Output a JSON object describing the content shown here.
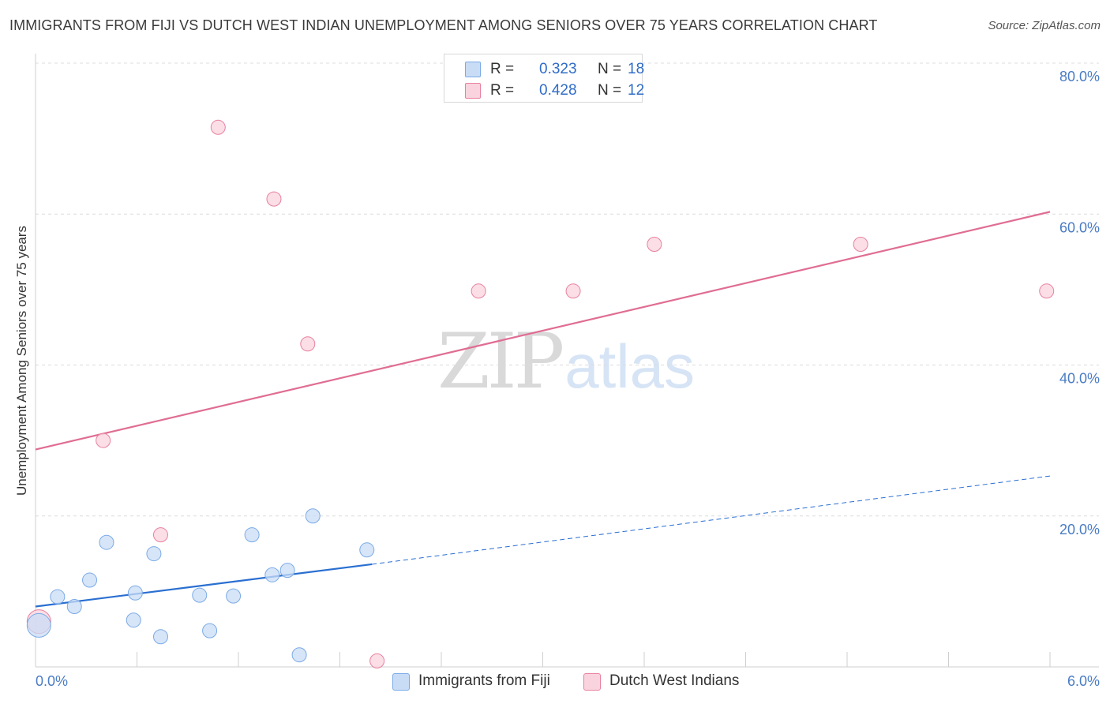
{
  "title": "IMMIGRANTS FROM FIJI VS DUTCH WEST INDIAN UNEMPLOYMENT AMONG SENIORS OVER 75 YEARS CORRELATION CHART",
  "source": "Source: ZipAtlas.com",
  "watermark": {
    "zip": "ZIP",
    "atlas": "atlas"
  },
  "legend_top": [
    {
      "r_label": "R =",
      "r_value": "0.323",
      "n_label": "N =",
      "n_value": "18",
      "color": "#a9c8f0"
    },
    {
      "r_label": "R =",
      "r_value": "0.428",
      "n_label": "N =",
      "n_value": "12",
      "color": "#f6b8c8"
    }
  ],
  "legend_bottom": [
    {
      "label": "Immigrants from Fiji",
      "color": "#a9c8f0"
    },
    {
      "label": "Dutch West Indians",
      "color": "#f6b8c8"
    }
  ],
  "chart_data": {
    "type": "scatter",
    "title": "IMMIGRANTS FROM FIJI VS DUTCH WEST INDIAN UNEMPLOYMENT AMONG SENIORS OVER 75 YEARS CORRELATION CHART",
    "xlabel": "",
    "ylabel": "Unemployment Among Seniors over 75 years",
    "xlim": [
      0,
      6
    ],
    "ylim": [
      0,
      80
    ],
    "x_tick_labels": [
      "0.0%",
      "6.0%"
    ],
    "y_ticks": [
      20,
      40,
      60,
      80
    ],
    "y_tick_labels": [
      "20.0%",
      "40.0%",
      "60.0%",
      "80.0%"
    ],
    "grid": true,
    "series": [
      {
        "name": "Immigrants from Fiji",
        "color": "#7aaae6",
        "fill": "#c9dcf5",
        "points": [
          {
            "x": 0.02,
            "y": 5.5
          },
          {
            "x": 0.13,
            "y": 9.3
          },
          {
            "x": 0.23,
            "y": 8.0
          },
          {
            "x": 0.32,
            "y": 11.5
          },
          {
            "x": 0.42,
            "y": 16.5
          },
          {
            "x": 0.58,
            "y": 6.2
          },
          {
            "x": 0.59,
            "y": 9.8
          },
          {
            "x": 0.7,
            "y": 15.0
          },
          {
            "x": 0.74,
            "y": 4.0
          },
          {
            "x": 0.97,
            "y": 9.5
          },
          {
            "x": 1.03,
            "y": 4.8
          },
          {
            "x": 1.17,
            "y": 9.4
          },
          {
            "x": 1.28,
            "y": 17.5
          },
          {
            "x": 1.4,
            "y": 12.2
          },
          {
            "x": 1.49,
            "y": 12.8
          },
          {
            "x": 1.56,
            "y": 1.6
          },
          {
            "x": 1.64,
            "y": 20.0
          },
          {
            "x": 1.96,
            "y": 15.5
          }
        ],
        "trend": {
          "x0": 0,
          "y0": 8.0,
          "x1": 1.99,
          "y1": 13.6,
          "dashed_to_x": 6.0,
          "dashed_to_y": 25.3
        }
      },
      {
        "name": "Dutch West Indians",
        "color": "#e8819f",
        "fill": "#f9d3de",
        "points": [
          {
            "x": 0.02,
            "y": 6.0
          },
          {
            "x": 0.4,
            "y": 30.0
          },
          {
            "x": 0.74,
            "y": 17.5
          },
          {
            "x": 1.08,
            "y": 71.5
          },
          {
            "x": 1.41,
            "y": 62.0
          },
          {
            "x": 1.61,
            "y": 42.8
          },
          {
            "x": 2.02,
            "y": 0.8
          },
          {
            "x": 2.62,
            "y": 49.8
          },
          {
            "x": 3.18,
            "y": 49.8
          },
          {
            "x": 3.66,
            "y": 56.0
          },
          {
            "x": 4.88,
            "y": 56.0
          },
          {
            "x": 5.98,
            "y": 49.8
          }
        ],
        "trend": {
          "x0": 0,
          "y0": 28.8,
          "x1": 6.0,
          "y1": 60.3
        }
      }
    ]
  }
}
